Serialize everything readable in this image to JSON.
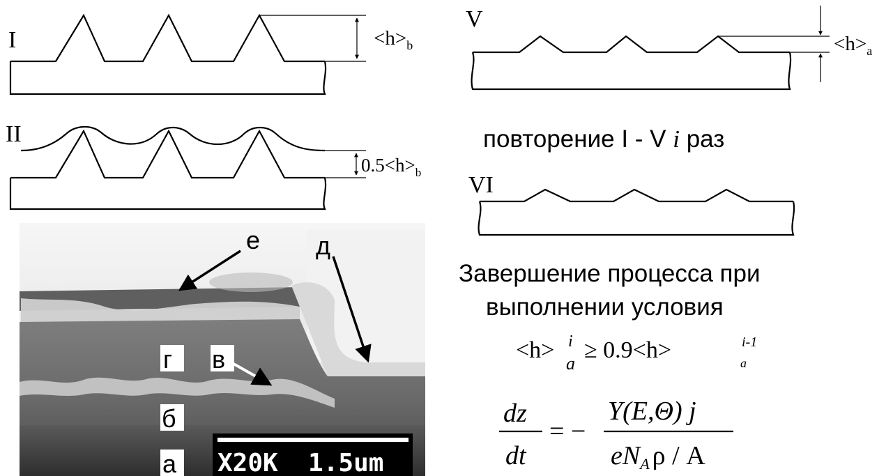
{
  "stages": {
    "s1": "I",
    "s2": "II",
    "s5": "V",
    "s6": "VI"
  },
  "dims": {
    "hb_main": "<h>",
    "hb_sub": "b",
    "half_hb_main": "0.5<h>",
    "half_hb_sub": "b",
    "ha_main": "<h>",
    "ha_sub": "a"
  },
  "text": {
    "repeat_prefix": "повторение I - V ",
    "repeat_i": "i",
    "repeat_suffix": " раз",
    "finish_line1": "Завершение процесса при",
    "finish_line2": "выполнении условия"
  },
  "condition": {
    "lhs": "<h>",
    "lhs_sup": "i",
    "lhs_sub": "a",
    "relation": "≥ 0.9<h>",
    "rhs_sup": "i-1",
    "rhs_sub": "a"
  },
  "formula": {
    "num1": "dz",
    "den1": "dt",
    "equals_minus": "= −",
    "num2": "Y(E,Θ) j",
    "den2_e": "eN",
    "den2_sub": "A",
    "den2_rest": "ρ / A"
  },
  "micrograph": {
    "labels": {
      "e": "е",
      "d": "д",
      "g": "г",
      "v": "в",
      "b": "б",
      "a": "а"
    },
    "scale_text": "X20K  1.5um"
  }
}
